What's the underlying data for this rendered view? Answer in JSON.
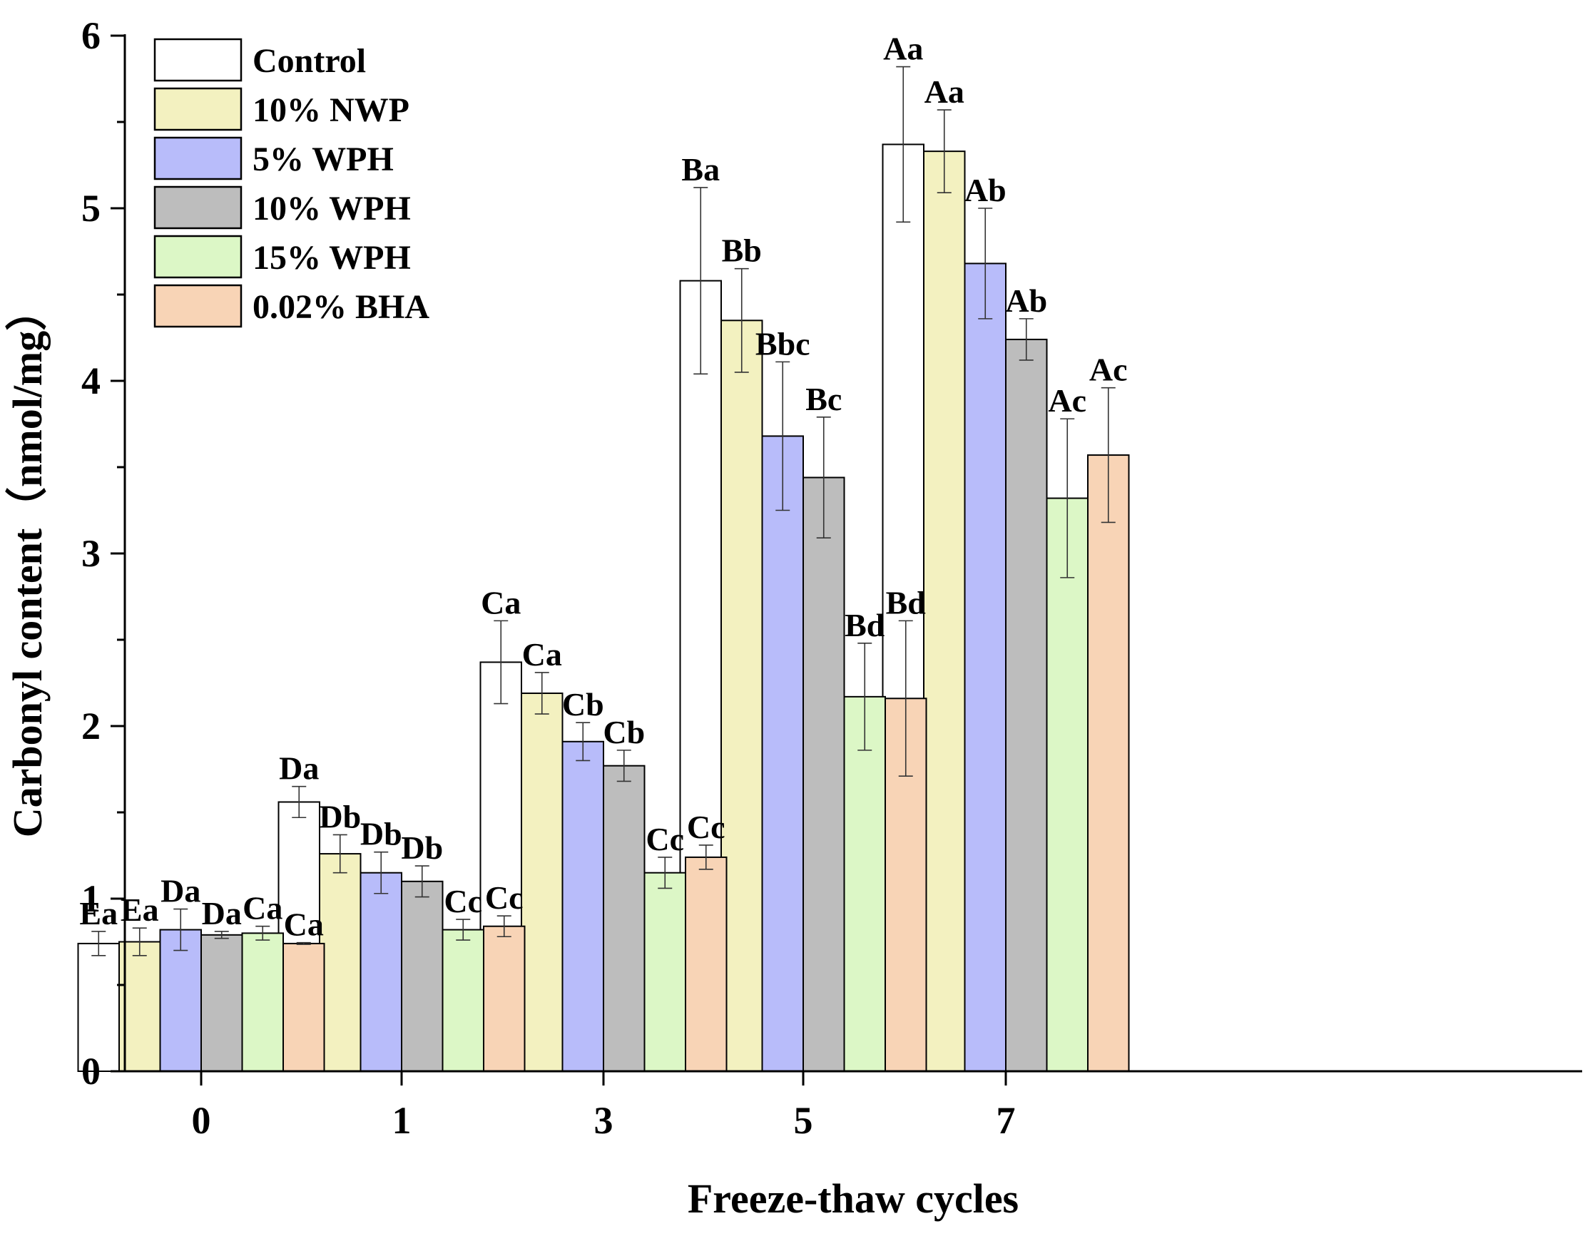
{
  "chart_data": {
    "type": "bar",
    "title": "",
    "xlabel": "Freeze-thaw cycles",
    "ylabel": "Carbonyl content（nmol/mg）",
    "categories": [
      "0",
      "1",
      "3",
      "5",
      "7"
    ],
    "ylim": [
      0,
      6
    ],
    "yticks": [
      "0",
      "1",
      "2",
      "3",
      "4",
      "5",
      "6"
    ],
    "legend_position": "top-left",
    "grid": false,
    "series": [
      {
        "name": "Control",
        "color": "#ffffff",
        "values": [
          0.74,
          1.56,
          2.37,
          4.58,
          5.37
        ],
        "errors": [
          0.07,
          0.09,
          0.24,
          0.54,
          0.45
        ],
        "labels": [
          "Ea",
          "Da",
          "Ca",
          "Ba",
          "Aa"
        ]
      },
      {
        "name": "10% NWP",
        "color": "#f3f1c0",
        "values": [
          0.75,
          1.26,
          2.19,
          4.35,
          5.33
        ],
        "errors": [
          0.08,
          0.11,
          0.12,
          0.3,
          0.24
        ],
        "labels": [
          "Ea",
          "Db",
          "Ca",
          "Bb",
          "Aa"
        ]
      },
      {
        "name": "5% WPH",
        "color": "#b8bcfa",
        "values": [
          0.82,
          1.15,
          1.91,
          3.68,
          4.68
        ],
        "errors": [
          0.12,
          0.12,
          0.11,
          0.43,
          0.32
        ],
        "labels": [
          "Da",
          "Db",
          "Cb",
          "Bbc",
          "Ab"
        ]
      },
      {
        "name": "10% WPH",
        "color": "#bdbdbd",
        "values": [
          0.79,
          1.1,
          1.77,
          3.44,
          4.24
        ],
        "errors": [
          0.02,
          0.09,
          0.09,
          0.35,
          0.12
        ],
        "labels": [
          "Da",
          "Db",
          "Cb",
          "Bc",
          "Ab"
        ]
      },
      {
        "name": "15% WPH",
        "color": "#dcf7c6",
        "values": [
          0.8,
          0.82,
          1.15,
          2.17,
          3.32
        ],
        "errors": [
          0.04,
          0.06,
          0.09,
          0.31,
          0.46
        ],
        "labels": [
          "Ca",
          "Cc",
          "Cc",
          "Bd",
          "Ac"
        ]
      },
      {
        "name": "0.02% BHA",
        "color": "#f8d4b6",
        "values": [
          0.74,
          0.84,
          1.24,
          2.16,
          3.57
        ],
        "errors": [
          0.005,
          0.06,
          0.07,
          0.45,
          0.39
        ],
        "labels": [
          "Ca",
          "Cc",
          "Cc",
          "Bd",
          "Ac"
        ]
      }
    ]
  }
}
